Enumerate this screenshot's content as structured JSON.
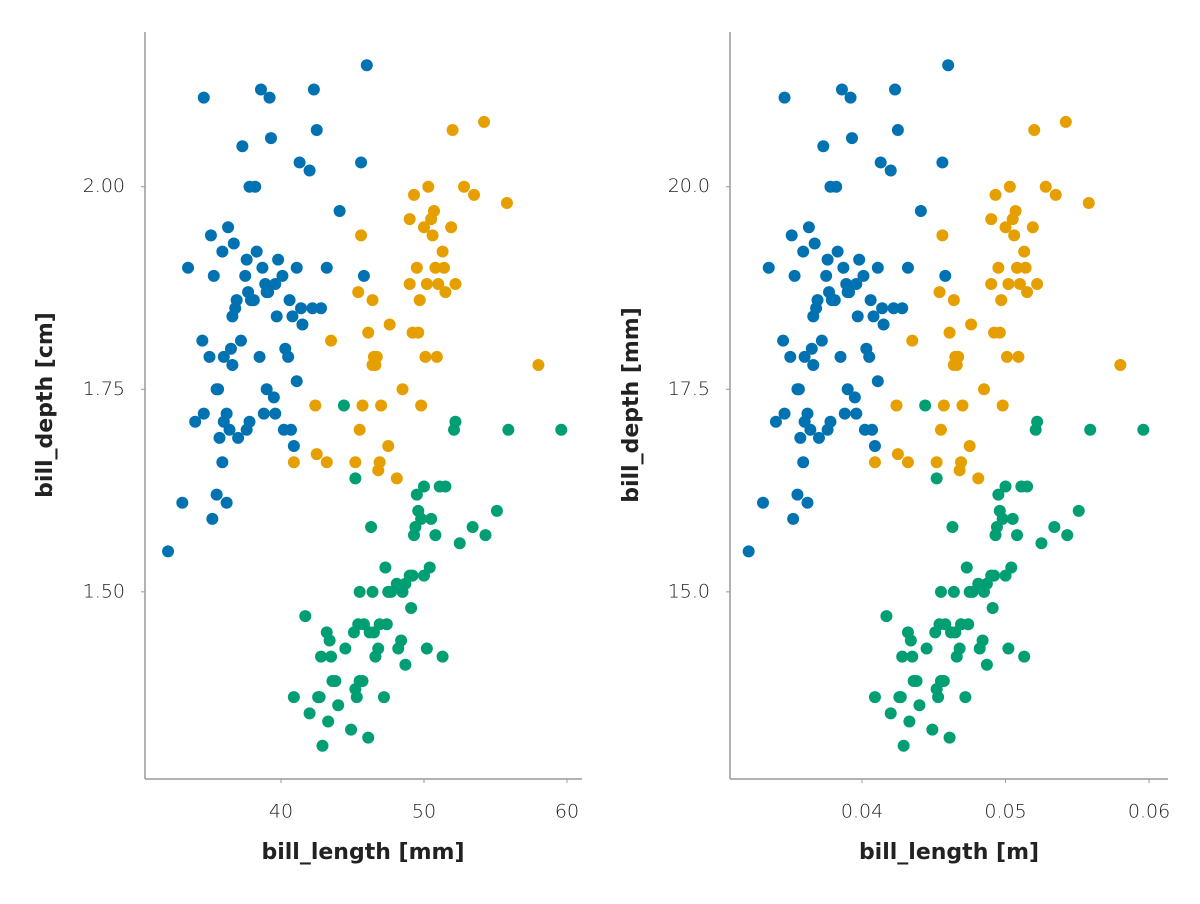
{
  "chart_data": [
    {
      "type": "scatter",
      "xlabel": "bill_length [mm]",
      "ylabel": "bill_depth [cm]",
      "xlim": [
        30.49,
        61.05
      ],
      "ylim": [
        1.269,
        2.191
      ],
      "xticks": [
        40,
        50,
        60
      ],
      "yticks": [
        {
          "value": 1.5,
          "label": "1.50"
        },
        {
          "value": 1.75,
          "label": "1.75"
        },
        {
          "value": 2,
          "label": "2.00"
        }
      ],
      "series": [
        {
          "color": "#0072b2",
          "x": [
            32.1,
            33.1,
            33.5,
            34.0,
            34.5,
            34.6,
            34.6,
            35.0,
            35.1,
            35.2,
            35.3,
            35.5,
            35.5,
            35.6,
            35.7,
            35.9,
            35.9,
            36.0,
            36.0,
            36.2,
            36.2,
            36.3,
            36.4,
            36.5,
            36.6,
            36.7,
            36.8,
            36.9,
            37.0,
            37.2,
            37.3,
            37.5,
            37.6,
            37.7,
            37.8,
            37.8,
            37.9,
            38.1,
            38.2,
            38.3,
            38.5,
            38.6,
            38.7,
            38.8,
            38.9,
            39.0,
            39.1,
            39.2,
            39.3,
            39.5,
            39.6,
            39.7,
            39.8,
            40.2,
            40.3,
            40.5,
            40.6,
            40.8,
            40.9,
            41.1,
            41.3,
            41.4,
            41.5,
            42.0,
            42.2,
            42.3,
            42.5,
            42.8,
            43.2,
            44.1,
            45.6,
            46.0,
            45.8,
            41.1,
            40.7,
            39.6,
            37.6,
            36.6,
            39.0,
            40.1
          ],
          "values": [
            1.55,
            1.61,
            1.9,
            1.71,
            1.81,
            2.11,
            1.72,
            1.79,
            1.94,
            1.59,
            1.89,
            1.62,
            1.75,
            1.75,
            1.69,
            1.92,
            1.66,
            1.71,
            1.79,
            1.61,
            1.72,
            1.95,
            1.7,
            1.8,
            1.78,
            1.93,
            1.85,
            1.86,
            1.69,
            1.81,
            2.05,
            1.89,
            1.91,
            1.87,
            1.71,
            2,
            1.86,
            1.86,
            2,
            1.92,
            1.79,
            2.12,
            1.9,
            1.72,
            1.88,
            1.75,
            1.87,
            2.11,
            2.06,
            1.74,
            1.88,
            1.84,
            1.91,
            1.7,
            1.8,
            1.79,
            1.86,
            1.84,
            1.68,
            1.9,
            2.03,
            1.85,
            1.83,
            2.02,
            1.85,
            2.12,
            2.07,
            1.85,
            1.9,
            1.97,
            2.03,
            2.15,
            1.89,
            1.76,
            1.7,
            1.72,
            1.7,
            1.84,
            1.87,
            1.89
          ]
        },
        {
          "color": "#e69f00",
          "x": [
            40.9,
            42.4,
            42.5,
            43.2,
            43.5,
            45.2,
            45.4,
            45.5,
            45.6,
            45.7,
            46.1,
            46.4,
            46.4,
            46.5,
            46.6,
            46.7,
            46.8,
            46.9,
            47.0,
            47.5,
            47.6,
            48.1,
            48.5,
            49.0,
            49.2,
            49.3,
            49.5,
            49.6,
            49.7,
            49.8,
            50.0,
            50.1,
            50.2,
            50.3,
            50.5,
            50.6,
            50.8,
            51.0,
            51.3,
            51.4,
            51.5,
            51.9,
            52.0,
            52.2,
            52.8,
            53.5,
            54.2,
            55.8,
            58.0,
            50.9,
            49.0,
            50.7
          ],
          "values": [
            1.66,
            1.73,
            1.67,
            1.66,
            1.81,
            1.66,
            1.87,
            1.7,
            1.94,
            1.73,
            1.82,
            1.86,
            1.78,
            1.79,
            1.78,
            1.79,
            1.65,
            1.66,
            1.73,
            1.68,
            1.83,
            1.64,
            1.75,
            1.88,
            1.82,
            1.99,
            1.9,
            1.82,
            1.86,
            1.73,
            1.95,
            1.79,
            1.88,
            2,
            1.96,
            1.94,
            1.9,
            1.88,
            1.92,
            1.9,
            1.87,
            1.95,
            2.07,
            1.88,
            2,
            1.99,
            2.08,
            1.98,
            1.78,
            1.79,
            1.96,
            1.97
          ]
        },
        {
          "color": "#009e73",
          "x": [
            40.9,
            41.7,
            42.0,
            42.6,
            42.7,
            42.8,
            42.9,
            43.2,
            43.3,
            43.4,
            43.5,
            43.8,
            44.0,
            44.4,
            44.5,
            44.9,
            45.1,
            45.2,
            45.3,
            45.4,
            45.5,
            45.7,
            45.8,
            46.1,
            46.2,
            46.3,
            46.4,
            46.5,
            46.6,
            46.8,
            47.2,
            47.3,
            47.5,
            47.7,
            48.1,
            48.2,
            48.4,
            48.5,
            48.7,
            49.0,
            49.1,
            49.2,
            49.4,
            49.5,
            49.6,
            49.8,
            50.0,
            50.2,
            50.4,
            50.5,
            50.8,
            51.1,
            51.3,
            51.5,
            52.1,
            52.2,
            52.5,
            53.4,
            54.3,
            55.1,
            55.9,
            59.6,
            45.2,
            46.9,
            48.7,
            49.3,
            50.0,
            47.4,
            43.6,
            45.5
          ],
          "values": [
            1.37,
            1.47,
            1.35,
            1.37,
            1.37,
            1.42,
            1.31,
            1.45,
            1.34,
            1.44,
            1.42,
            1.39,
            1.36,
            1.73,
            1.43,
            1.33,
            1.45,
            1.38,
            1.37,
            1.46,
            1.39,
            1.39,
            1.46,
            1.32,
            1.45,
            1.58,
            1.5,
            1.45,
            1.42,
            1.43,
            1.37,
            1.53,
            1.5,
            1.5,
            1.51,
            1.43,
            1.44,
            1.5,
            1.51,
            1.52,
            1.48,
            1.52,
            1.58,
            1.62,
            1.6,
            1.59,
            1.52,
            1.43,
            1.53,
            1.59,
            1.57,
            1.63,
            1.42,
            1.63,
            1.7,
            1.71,
            1.56,
            1.58,
            1.57,
            1.6,
            1.7,
            1.7,
            1.64,
            1.46,
            1.41,
            1.57,
            1.63,
            1.46,
            1.39,
            1.5
          ]
        }
      ]
    },
    {
      "type": "scatter",
      "xlabel": "bill_length [m]",
      "ylabel": "bill_depth [mm]",
      "xlim": [
        0.0308,
        0.06132
      ],
      "ylim": [
        12.69,
        21.91
      ],
      "xticks": [
        0.04,
        0.05,
        0.06
      ],
      "yticks": [
        {
          "value": 15,
          "label": "15.0"
        },
        17.5,
        {
          "value": 20,
          "label": "20.0"
        }
      ],
      "series": [
        {
          "color": "#0072b2",
          "x": [
            0.0321,
            0.0331,
            0.0335,
            0.034,
            0.0345,
            0.0346,
            0.0346,
            0.035,
            0.0351,
            0.0352,
            0.0353,
            0.0355,
            0.0355,
            0.0356,
            0.0357,
            0.0359,
            0.0359,
            0.036,
            0.036,
            0.0362,
            0.0362,
            0.0363,
            0.0364,
            0.0365,
            0.0366,
            0.0367,
            0.0368,
            0.0369,
            0.037,
            0.0372,
            0.0373,
            0.0375,
            0.0376,
            0.0377,
            0.0378,
            0.0378,
            0.0379,
            0.0381,
            0.0382,
            0.0383,
            0.0385,
            0.0386,
            0.0387,
            0.0388,
            0.0389,
            0.039,
            0.0391,
            0.0392,
            0.0393,
            0.0395,
            0.0396,
            0.0397,
            0.0398,
            0.0402,
            0.0403,
            0.0405,
            0.0406,
            0.0408,
            0.0409,
            0.0411,
            0.0413,
            0.0414,
            0.0415,
            0.042,
            0.0422,
            0.0423,
            0.0425,
            0.0428,
            0.0432,
            0.0441,
            0.0456,
            0.046,
            0.0458,
            0.0411,
            0.0407,
            0.0396,
            0.0376,
            0.0366,
            0.039,
            0.0401
          ],
          "values": [
            15.5,
            16.1,
            19.0,
            17.1,
            18.1,
            21.1,
            17.2,
            17.9,
            19.4,
            15.9,
            18.9,
            16.2,
            17.5,
            17.5,
            16.9,
            19.2,
            16.6,
            17.1,
            17.9,
            16.1,
            17.2,
            19.5,
            17.0,
            18.0,
            17.8,
            19.3,
            18.5,
            18.6,
            16.9,
            18.1,
            20.5,
            18.9,
            19.1,
            18.7,
            17.1,
            20.0,
            18.6,
            18.6,
            20.0,
            19.2,
            17.9,
            21.2,
            19.0,
            17.2,
            18.8,
            17.5,
            18.7,
            21.1,
            20.6,
            17.4,
            18.8,
            18.4,
            19.1,
            17.0,
            18.0,
            17.9,
            18.6,
            18.4,
            16.8,
            19.0,
            20.3,
            18.5,
            18.3,
            20.2,
            18.5,
            21.2,
            20.7,
            18.5,
            19.0,
            19.7,
            20.3,
            21.5,
            18.9,
            17.6,
            17.0,
            17.2,
            17.0,
            18.4,
            18.7,
            18.9
          ]
        },
        {
          "color": "#e69f00",
          "x": [
            0.0409,
            0.0424,
            0.0425,
            0.0432,
            0.0435,
            0.0452,
            0.0454,
            0.0455,
            0.0456,
            0.0457,
            0.0461,
            0.0464,
            0.0464,
            0.0465,
            0.0466,
            0.0467,
            0.0468,
            0.0469,
            0.047,
            0.0475,
            0.0476,
            0.0481,
            0.0485,
            0.049,
            0.0492,
            0.0493,
            0.0495,
            0.0496,
            0.0497,
            0.0498,
            0.05,
            0.0501,
            0.0502,
            0.0503,
            0.0505,
            0.0506,
            0.0508,
            0.051,
            0.0513,
            0.0514,
            0.0515,
            0.0519,
            0.052,
            0.0522,
            0.0528,
            0.0535,
            0.0542,
            0.0558,
            0.058,
            0.0509,
            0.049,
            0.0507
          ],
          "values": [
            16.6,
            17.3,
            16.7,
            16.6,
            18.1,
            16.6,
            18.7,
            17.0,
            19.4,
            17.3,
            18.2,
            18.6,
            17.8,
            17.9,
            17.8,
            17.9,
            16.5,
            16.6,
            17.3,
            16.8,
            18.3,
            16.4,
            17.5,
            18.8,
            18.2,
            19.9,
            19.0,
            18.2,
            18.6,
            17.3,
            19.5,
            17.9,
            18.8,
            20.0,
            19.6,
            19.4,
            19.0,
            18.8,
            19.2,
            19.0,
            18.7,
            19.5,
            20.7,
            18.8,
            20.0,
            19.9,
            20.8,
            19.8,
            17.8,
            17.9,
            19.6,
            19.7
          ]
        },
        {
          "color": "#009e73",
          "x": [
            0.0409,
            0.0417,
            0.042,
            0.0426,
            0.0427,
            0.0428,
            0.0429,
            0.0432,
            0.0433,
            0.0434,
            0.0435,
            0.0438,
            0.044,
            0.0444,
            0.0445,
            0.0449,
            0.0451,
            0.0452,
            0.0453,
            0.0454,
            0.0455,
            0.0457,
            0.0458,
            0.0461,
            0.0462,
            0.0463,
            0.0464,
            0.0465,
            0.0466,
            0.0468,
            0.0472,
            0.0473,
            0.0475,
            0.0477,
            0.0481,
            0.0482,
            0.0484,
            0.0485,
            0.0487,
            0.049,
            0.0491,
            0.0492,
            0.0494,
            0.0495,
            0.0496,
            0.0498,
            0.05,
            0.0502,
            0.0504,
            0.0505,
            0.0508,
            0.0511,
            0.0513,
            0.0515,
            0.0521,
            0.0522,
            0.0525,
            0.0534,
            0.0543,
            0.0551,
            0.0559,
            0.0596,
            0.0452,
            0.0469,
            0.0487,
            0.0493,
            0.05,
            0.0474,
            0.0436,
            0.0455
          ],
          "values": [
            13.7,
            14.7,
            13.5,
            13.7,
            13.7,
            14.2,
            13.1,
            14.5,
            13.4,
            14.4,
            14.2,
            13.9,
            13.6,
            17.3,
            14.3,
            13.3,
            14.5,
            13.8,
            13.7,
            14.6,
            13.9,
            13.9,
            14.6,
            13.2,
            14.5,
            15.8,
            15.0,
            14.5,
            14.2,
            14.3,
            13.7,
            15.3,
            15.0,
            15.0,
            15.1,
            14.3,
            14.4,
            15.0,
            15.1,
            15.2,
            14.8,
            15.2,
            15.8,
            16.2,
            16.0,
            15.9,
            15.2,
            14.3,
            15.3,
            15.9,
            15.7,
            16.3,
            14.2,
            16.3,
            17.0,
            17.1,
            15.6,
            15.8,
            15.7,
            16.0,
            17.0,
            17.0,
            16.4,
            14.6,
            14.1,
            15.7,
            16.3,
            14.6,
            13.9,
            15.0
          ]
        }
      ]
    }
  ]
}
